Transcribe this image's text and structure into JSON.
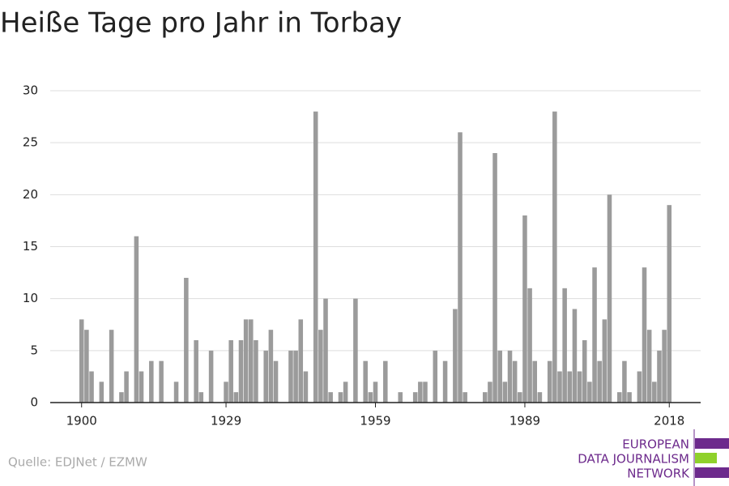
{
  "chart_data": {
    "type": "bar",
    "title": "Heiße Tage pro Jahr in Torbay",
    "x": [
      1900,
      1901,
      1902,
      1903,
      1904,
      1905,
      1906,
      1907,
      1908,
      1909,
      1910,
      1911,
      1912,
      1913,
      1914,
      1915,
      1916,
      1917,
      1918,
      1919,
      1920,
      1921,
      1922,
      1923,
      1924,
      1925,
      1926,
      1927,
      1928,
      1929,
      1930,
      1931,
      1932,
      1933,
      1934,
      1935,
      1936,
      1937,
      1938,
      1939,
      1940,
      1941,
      1942,
      1943,
      1944,
      1945,
      1946,
      1947,
      1948,
      1949,
      1950,
      1951,
      1952,
      1953,
      1954,
      1955,
      1956,
      1957,
      1958,
      1959,
      1960,
      1961,
      1962,
      1963,
      1964,
      1965,
      1966,
      1967,
      1968,
      1969,
      1970,
      1971,
      1972,
      1973,
      1974,
      1975,
      1976,
      1977,
      1978,
      1979,
      1980,
      1981,
      1982,
      1983,
      1984,
      1985,
      1986,
      1987,
      1988,
      1989,
      1990,
      1991,
      1992,
      1993,
      1994,
      1995,
      1996,
      1997,
      1998,
      1999,
      2000,
      2001,
      2002,
      2003,
      2004,
      2005,
      2006,
      2007,
      2008,
      2009,
      2010,
      2011,
      2012,
      2013,
      2014,
      2015,
      2016,
      2017,
      2018
    ],
    "values": [
      8,
      7,
      3,
      0,
      2,
      0,
      7,
      0,
      1,
      3,
      0,
      16,
      3,
      0,
      4,
      0,
      4,
      0,
      0,
      2,
      0,
      12,
      0,
      6,
      1,
      0,
      5,
      0,
      0,
      2,
      6,
      1,
      6,
      8,
      8,
      6,
      0,
      5,
      7,
      4,
      0,
      0,
      5,
      5,
      8,
      3,
      0,
      28,
      7,
      10,
      1,
      0,
      1,
      2,
      0,
      10,
      0,
      4,
      1,
      2,
      0,
      4,
      0,
      0,
      1,
      0,
      0,
      1,
      2,
      2,
      0,
      5,
      0,
      4,
      0,
      9,
      26,
      1,
      0,
      0,
      0,
      1,
      2,
      24,
      5,
      2,
      5,
      4,
      1,
      18,
      11,
      4,
      1,
      0,
      4,
      28,
      3,
      11,
      3,
      9,
      3,
      6,
      2,
      13,
      4,
      8,
      20,
      0,
      1,
      4,
      1,
      0,
      3,
      13,
      7,
      2,
      5,
      7,
      19
    ],
    "color": "#9b9b9b",
    "xlim": [
      1893.7,
      2024.3
    ],
    "xticks": [
      1900,
      1929,
      1959,
      1989,
      2018
    ],
    "ylim": [
      0,
      30
    ],
    "yticks": [
      0,
      5,
      10,
      15,
      20,
      25,
      30
    ],
    "grid": true,
    "source": "Quelle: EDJNet / EZMW",
    "logo": [
      "EUROPEAN",
      "DATA JOURNALISM",
      "NETWORK"
    ]
  }
}
